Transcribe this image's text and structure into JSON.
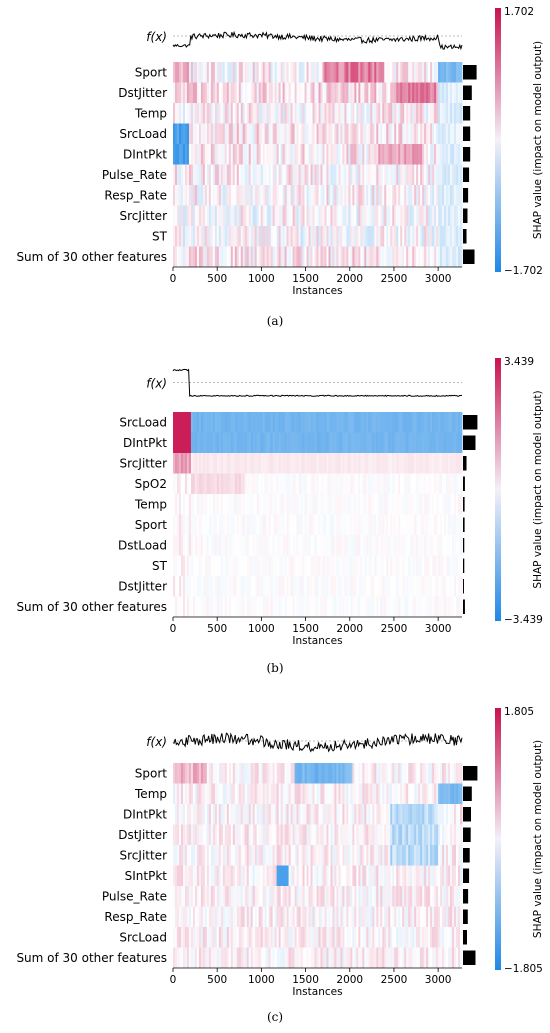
{
  "chart_data": [
    {
      "type": "heatmap",
      "caption": "(a)",
      "output_label": "f(x)",
      "xlabel": "Instances",
      "x_ticks": [
        "0",
        "500",
        "1000",
        "1500",
        "2000",
        "2500",
        "3000"
      ],
      "x_range": [
        0,
        3270
      ],
      "features": [
        "Sport",
        "DstJitter",
        "Temp",
        "SrcLoad",
        "DIntPkt",
        "Pulse_Rate",
        "Resp_Rate",
        "SrcJitter",
        "ST",
        "Sum of 30 other features"
      ],
      "feature_importance": [
        0.85,
        0.55,
        0.45,
        0.45,
        0.45,
        0.38,
        0.32,
        0.28,
        0.22,
        0.72
      ],
      "colorbar": {
        "label": "SHAP value (impact on model output)",
        "max": "1.702",
        "min": "−1.702",
        "vmax": 1.702,
        "low_color": "#1e88e5",
        "high_color": "#c8124f"
      }
    },
    {
      "type": "heatmap",
      "caption": "(b)",
      "output_label": "f(x)",
      "xlabel": "Instances",
      "x_ticks": [
        "0",
        "500",
        "1000",
        "1500",
        "2000",
        "2500",
        "3000"
      ],
      "x_range": [
        0,
        3270
      ],
      "features": [
        "SrcLoad",
        "DIntPkt",
        "SrcJitter",
        "SpO2",
        "Temp",
        "Sport",
        "DstLoad",
        "ST",
        "DstJitter",
        "Sum of 30 other features"
      ],
      "feature_importance": [
        0.9,
        0.78,
        0.22,
        0.12,
        0.1,
        0.1,
        0.08,
        0.08,
        0.06,
        0.12
      ],
      "colorbar": {
        "label": "SHAP value (impact on model output)",
        "max": "3.439",
        "min": "−3.439",
        "vmax": 3.439,
        "low_color": "#1e88e5",
        "high_color": "#c8124f"
      }
    },
    {
      "type": "heatmap",
      "caption": "(c)",
      "output_label": "f(x)",
      "xlabel": "Instances",
      "x_ticks": [
        "0",
        "500",
        "1000",
        "1500",
        "2000",
        "2500",
        "3000"
      ],
      "x_range": [
        0,
        3270
      ],
      "features": [
        "Sport",
        "Temp",
        "DIntPkt",
        "DstJitter",
        "SrcJitter",
        "SIntPkt",
        "Pulse_Rate",
        "Resp_Rate",
        "SrcLoad",
        "Sum of 30 other features"
      ],
      "feature_importance": [
        0.9,
        0.55,
        0.5,
        0.48,
        0.42,
        0.38,
        0.32,
        0.3,
        0.25,
        0.78
      ],
      "colorbar": {
        "label": "SHAP value (impact on model output)",
        "max": "1.805",
        "min": "−1.805",
        "vmax": 1.805,
        "low_color": "#1e88e5",
        "high_color": "#c8124f"
      }
    }
  ]
}
